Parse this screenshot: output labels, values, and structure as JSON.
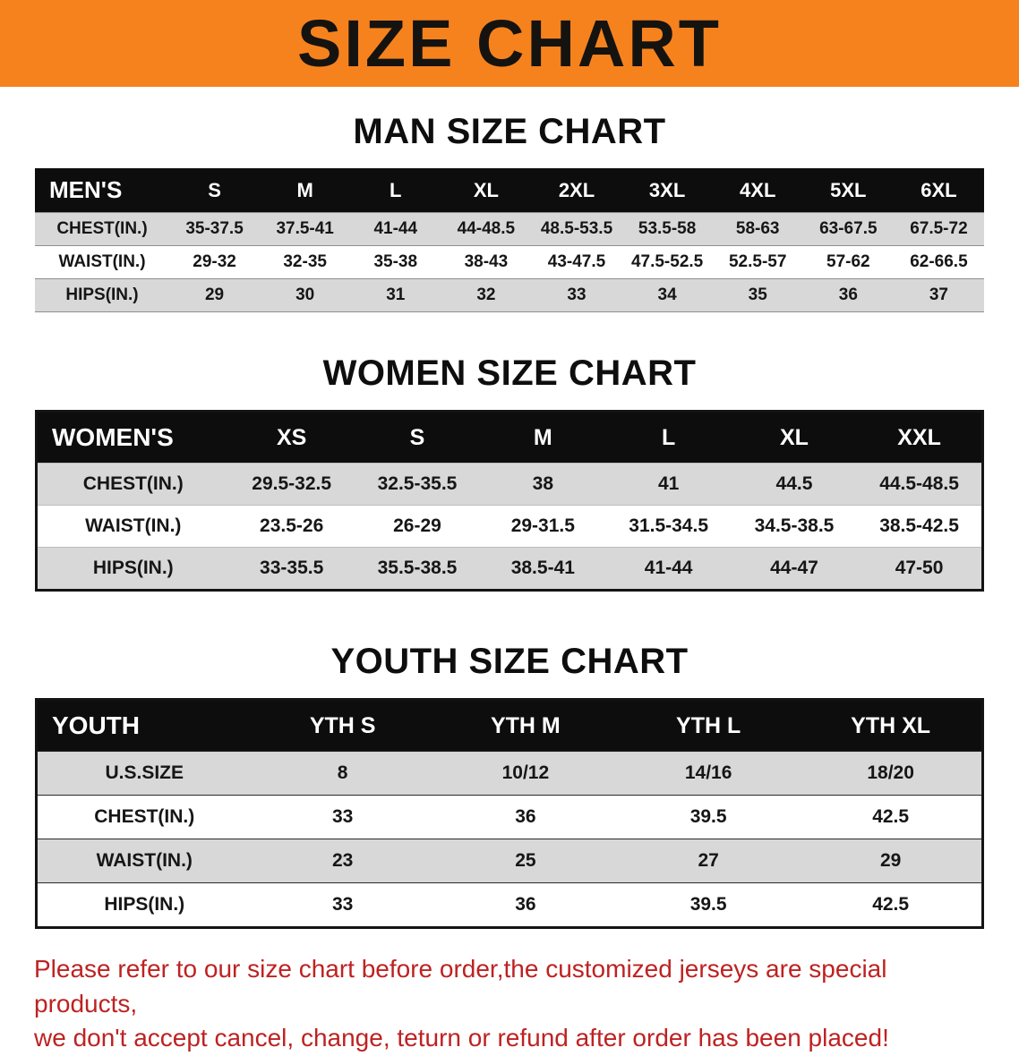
{
  "banner": {
    "title": "SIZE CHART"
  },
  "colors": {
    "banner_orange": "#F6821E",
    "header_black": "#0D0D0D",
    "row_gray": "#D8D8D8",
    "footer_red": "#BE2222"
  },
  "sections": {
    "men": {
      "heading": "MAN SIZE CHART",
      "label": "MEN'S",
      "columns": [
        "S",
        "M",
        "L",
        "XL",
        "2XL",
        "3XL",
        "4XL",
        "5XL",
        "6XL"
      ],
      "rows": [
        {
          "label": "CHEST(IN.)",
          "values": [
            "35-37.5",
            "37.5-41",
            "41-44",
            "44-48.5",
            "48.5-53.5",
            "53.5-58",
            "58-63",
            "63-67.5",
            "67.5-72"
          ]
        },
        {
          "label": "WAIST(IN.)",
          "values": [
            "29-32",
            "32-35",
            "35-38",
            "38-43",
            "43-47.5",
            "47.5-52.5",
            "52.5-57",
            "57-62",
            "62-66.5"
          ]
        },
        {
          "label": "HIPS(IN.)",
          "values": [
            "29",
            "30",
            "31",
            "32",
            "33",
            "34",
            "35",
            "36",
            "37"
          ]
        }
      ]
    },
    "women": {
      "heading": "WOMEN SIZE CHART",
      "label": "WOMEN'S",
      "columns": [
        "XS",
        "S",
        "M",
        "L",
        "XL",
        "XXL"
      ],
      "rows": [
        {
          "label": "CHEST(IN.)",
          "values": [
            "29.5-32.5",
            "32.5-35.5",
            "38",
            "41",
            "44.5",
            "44.5-48.5"
          ]
        },
        {
          "label": "WAIST(IN.)",
          "values": [
            "23.5-26",
            "26-29",
            "29-31.5",
            "31.5-34.5",
            "34.5-38.5",
            "38.5-42.5"
          ]
        },
        {
          "label": "HIPS(IN.)",
          "values": [
            "33-35.5",
            "35.5-38.5",
            "38.5-41",
            "41-44",
            "44-47",
            "47-50"
          ]
        }
      ]
    },
    "youth": {
      "heading": "YOUTH SIZE CHART",
      "label": "YOUTH",
      "columns": [
        "YTH S",
        "YTH M",
        "YTH L",
        "YTH XL"
      ],
      "rows": [
        {
          "label": "U.S.SIZE",
          "values": [
            "8",
            "10/12",
            "14/16",
            "18/20"
          ]
        },
        {
          "label": "CHEST(IN.)",
          "values": [
            "33",
            "36",
            "39.5",
            "42.5"
          ]
        },
        {
          "label": "WAIST(IN.)",
          "values": [
            "23",
            "25",
            "27",
            "29"
          ]
        },
        {
          "label": "HIPS(IN.)",
          "values": [
            "33",
            "36",
            "39.5",
            "42.5"
          ]
        }
      ]
    }
  },
  "footer": {
    "line1": "Please refer to our size chart before order,the customized jerseys are special products,",
    "line2": "we don't accept cancel, change, teturn or refund after order has been placed!"
  }
}
